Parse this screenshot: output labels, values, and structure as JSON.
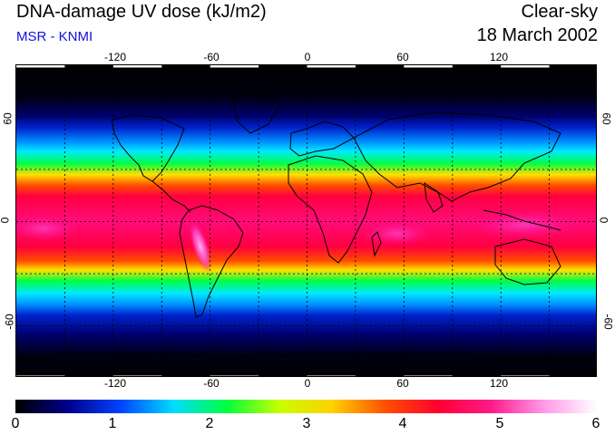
{
  "header": {
    "title": "DNA-damage UV dose (kJ/m2)",
    "subtitle": "MSR - KNMI",
    "sky_condition": "Clear-sky",
    "date": "18 March 2002"
  },
  "map": {
    "projection": "equirectangular",
    "lon_range": [
      -180,
      180
    ],
    "lat_range": [
      -90,
      90
    ],
    "lon_ticks": [
      "-120",
      "-60",
      "0",
      "60",
      "120"
    ],
    "lat_ticks": [
      "60",
      "0",
      "-60"
    ],
    "gridlines": "dashed, every 30 degrees",
    "field_description": "zonal UV dose bands: near 0 at poles, about 5-6 in tropics, peak over the Andes"
  },
  "colorbar": {
    "min": 0,
    "max": 6,
    "tick_labels": [
      "0",
      "1",
      "2",
      "3",
      "4",
      "5",
      "6"
    ],
    "colors": [
      "#000000",
      "#00008c",
      "#0044ff",
      "#00ddff",
      "#00ff3c",
      "#c8ff00",
      "#ffd000",
      "#ff5000",
      "#ff0030",
      "#ff1a8c",
      "#ff9ae8",
      "#ffffff"
    ]
  },
  "colors": {
    "subtitle": "#1010e0",
    "coastline": "#000000",
    "grid": "#000000"
  }
}
